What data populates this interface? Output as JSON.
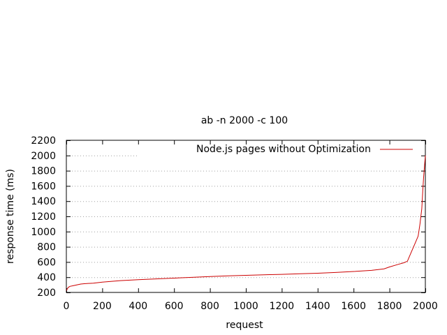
{
  "chart_data": {
    "type": "line",
    "title": "ab -n 2000 -c 100",
    "xlabel": "request",
    "ylabel": "response time (ms)",
    "xlim": [
      0,
      2000
    ],
    "ylim": [
      200,
      2200
    ],
    "xticks": [
      0,
      200,
      400,
      600,
      800,
      1000,
      1200,
      1400,
      1600,
      1800,
      2000
    ],
    "yticks": [
      200,
      400,
      600,
      800,
      1000,
      1200,
      1400,
      1600,
      1800,
      2000,
      2200
    ],
    "grid": true,
    "legend_position": "top-right",
    "series": [
      {
        "name": "Node.js pages without Optimization",
        "color": "#cc0000",
        "x": [
          0,
          5,
          10,
          20,
          40,
          60,
          80,
          100,
          150,
          200,
          300,
          400,
          500,
          600,
          700,
          800,
          900,
          1000,
          1100,
          1200,
          1300,
          1400,
          1500,
          1600,
          1700,
          1770,
          1800,
          1850,
          1880,
          1900,
          1920,
          1940,
          1960,
          1970,
          1980,
          1985,
          1990,
          1995,
          2000
        ],
        "y": [
          225,
          245,
          265,
          280,
          290,
          300,
          310,
          315,
          322,
          335,
          355,
          368,
          378,
          388,
          398,
          408,
          418,
          425,
          432,
          438,
          445,
          452,
          462,
          475,
          490,
          510,
          535,
          570,
          590,
          610,
          720,
          830,
          940,
          1100,
          1300,
          1500,
          1700,
          1850,
          2000
        ]
      }
    ]
  }
}
